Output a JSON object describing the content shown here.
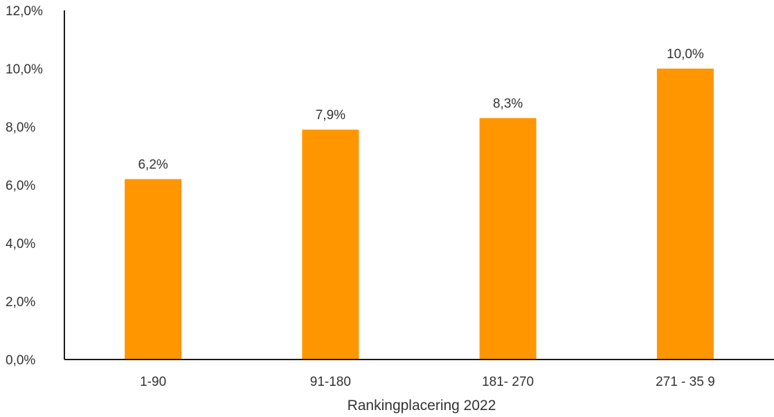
{
  "chart_data": {
    "type": "bar",
    "categories": [
      "1-90",
      "91-180",
      "181- 270",
      "271 - 35 9"
    ],
    "values": [
      6.2,
      7.9,
      8.3,
      10.0
    ],
    "data_labels": [
      "6,2%",
      "7,9%",
      "8,3%",
      "10,0%"
    ],
    "title": "",
    "xlabel": "Rankingplacering 2022",
    "ylabel": "",
    "ylim": [
      0,
      12
    ],
    "yticks": [
      0,
      2,
      4,
      6,
      8,
      10,
      12
    ],
    "ytick_labels": [
      "0,0%",
      "2,0%",
      "4,0%",
      "6,0%",
      "8,0%",
      "10,0%",
      "12,0%"
    ],
    "grid": false,
    "legend": "none",
    "colors": {
      "bar": "#ff9600",
      "axis": "#1a1a1a",
      "text": "#333333"
    }
  }
}
